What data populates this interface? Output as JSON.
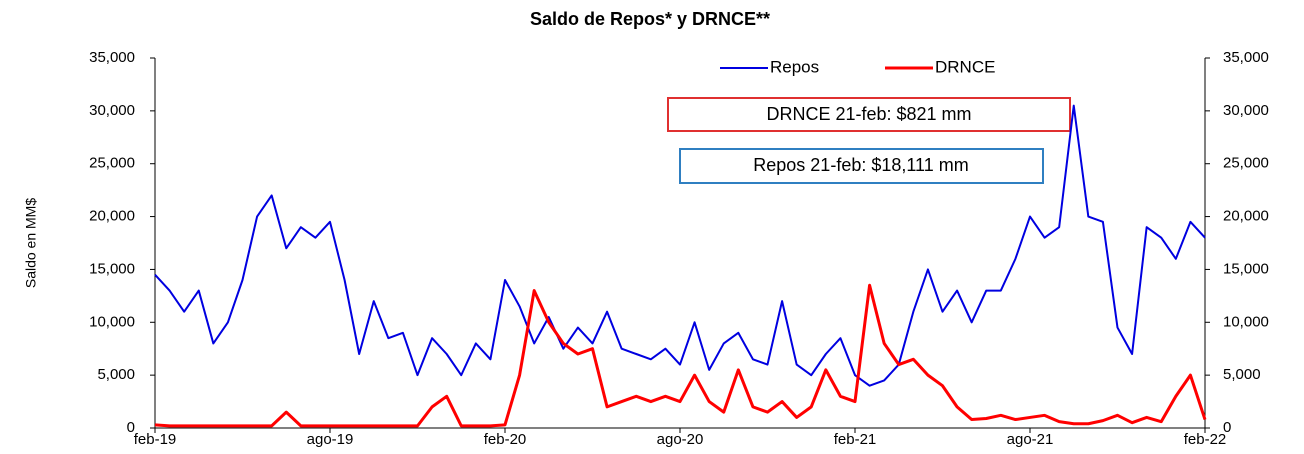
{
  "chart_data": {
    "type": "line",
    "title": "Saldo de Repos* y DRNCE**",
    "y_label": "Saldo en MM$",
    "annotations": [
      "DRNCE 21-feb: $821 mm",
      "Repos 21-feb: $18,111 mm"
    ],
    "x": [
      0,
      0.5,
      1,
      1.5,
      2,
      2.5,
      3,
      3.5,
      4,
      4.5,
      5,
      5.5,
      6,
      6.5,
      7,
      7.5,
      8,
      8.5,
      9,
      9.5,
      10,
      10.5,
      11,
      11.5,
      12,
      12.5,
      13,
      13.5,
      14,
      14.5,
      15,
      15.5,
      16,
      16.5,
      17,
      17.5,
      18,
      18.5,
      19,
      19.5,
      20,
      20.5,
      21,
      21.5,
      22,
      22.5,
      23,
      23.5,
      24,
      24.5,
      25,
      25.5,
      26,
      26.5,
      27,
      27.5,
      28,
      28.5,
      29,
      29.5,
      30,
      30.5,
      31,
      31.5,
      32,
      32.5,
      33,
      33.5,
      34,
      34.5,
      35,
      35.5,
      36
    ],
    "series": [
      {
        "name": "Repos",
        "color": "#0000e0",
        "values": [
          14500,
          13000,
          11000,
          13000,
          8000,
          10000,
          14000,
          20000,
          22000,
          17000,
          19000,
          18000,
          19500,
          14000,
          7000,
          12000,
          8500,
          9000,
          5000,
          8500,
          7000,
          5000,
          8000,
          6500,
          14000,
          11500,
          8000,
          10500,
          7500,
          9500,
          8000,
          11000,
          7500,
          7000,
          6500,
          7500,
          6000,
          10000,
          5500,
          8000,
          9000,
          6500,
          6000,
          12000,
          6000,
          5000,
          7000,
          8500,
          5000,
          4000,
          4500,
          6000,
          11000,
          15000,
          11000,
          13000,
          10000,
          13000,
          13000,
          16000,
          20000,
          18000,
          19000,
          30500,
          20000,
          19500,
          9500,
          7000,
          19000,
          18000,
          16000,
          19500,
          18000
        ]
      },
      {
        "name": "DRNCE",
        "color": "#ff0000",
        "values": [
          300,
          200,
          200,
          200,
          200,
          200,
          200,
          200,
          200,
          1500,
          200,
          200,
          200,
          200,
          200,
          200,
          200,
          200,
          200,
          2000,
          3000,
          200,
          200,
          200,
          300,
          5000,
          13000,
          10000,
          8000,
          7000,
          7500,
          2000,
          2500,
          3000,
          2500,
          3000,
          2500,
          5000,
          2500,
          1500,
          5500,
          2000,
          1500,
          2500,
          1000,
          2000,
          5500,
          3000,
          2500,
          13500,
          8000,
          6000,
          6500,
          5000,
          4000,
          2000,
          800,
          900,
          1200,
          800,
          1000,
          1200,
          600,
          400,
          400,
          700,
          1200,
          500,
          1000,
          600,
          3000,
          5000,
          800
        ]
      }
    ],
    "xlim": [
      0,
      36
    ],
    "xticks": [
      {
        "value": 0,
        "label": "feb-19"
      },
      {
        "value": 6,
        "label": "ago-19"
      },
      {
        "value": 12,
        "label": "feb-20"
      },
      {
        "value": 18,
        "label": "ago-20"
      },
      {
        "value": 24,
        "label": "feb-21"
      },
      {
        "value": 30,
        "label": "ago-21"
      },
      {
        "value": 36,
        "label": "feb-22"
      }
    ],
    "ylim": [
      0,
      35000
    ],
    "yticks": [
      0,
      {
        "value": 5000,
        "label": "5,000"
      },
      {
        "value": 10000,
        "label": "10,000"
      },
      {
        "value": 15000,
        "label": "15,000"
      },
      {
        "value": 20000,
        "label": "20,000"
      },
      {
        "value": 25000,
        "label": "25,000"
      },
      {
        "value": 30000,
        "label": "30,000"
      },
      {
        "value": 35000,
        "label": "35,000"
      }
    ],
    "y2lim": [
      0,
      35000
    ],
    "y2ticks": [
      0,
      {
        "value": 5000,
        "label": "5,000"
      },
      {
        "value": 10000,
        "label": "10,000"
      },
      {
        "value": 15000,
        "label": "15,000"
      },
      {
        "value": 20000,
        "label": "20,000"
      },
      {
        "value": 25000,
        "label": "25,000"
      },
      {
        "value": 30000,
        "label": "30,000"
      },
      {
        "value": 35000,
        "label": "35,000"
      }
    ]
  }
}
